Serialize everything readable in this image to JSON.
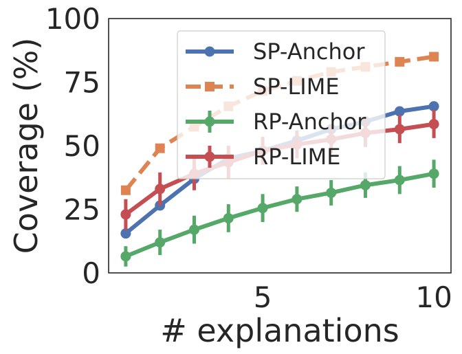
{
  "chart_data": {
    "type": "line",
    "title": "",
    "xlabel": "# explanations",
    "ylabel": "Coverage (%)",
    "xlim": [
      0.5,
      10.5
    ],
    "ylim": [
      0,
      100
    ],
    "xticks": [
      5,
      10
    ],
    "yticks": [
      0,
      25,
      50,
      75,
      100
    ],
    "grid": false,
    "legend_position": "upper-center",
    "x": [
      1,
      2,
      3,
      4,
      5,
      6,
      7,
      8,
      9,
      10
    ],
    "series": [
      {
        "name": "SP-Anchor",
        "color": "#4c72b0",
        "style": "solid",
        "marker": "circle",
        "values": [
          15.5,
          26.5,
          37,
          45,
          48,
          52,
          56.5,
          59.5,
          63.5,
          65.5
        ],
        "errors": [
          0,
          0,
          0,
          0,
          0,
          0,
          0,
          0,
          0,
          0
        ]
      },
      {
        "name": "SP-LIME",
        "color": "#dd8452",
        "style": "dashed",
        "marker": "square",
        "values": [
          32.5,
          49,
          57.5,
          65.5,
          71.5,
          75.5,
          79,
          81,
          83,
          85
        ],
        "errors": [
          0,
          0,
          0,
          0,
          0,
          0,
          0,
          0,
          0,
          0
        ]
      },
      {
        "name": "RP-Anchor",
        "color": "#55a868",
        "style": "solid",
        "marker": "circle",
        "values": [
          6.5,
          12,
          17,
          21.5,
          25.5,
          29,
          31.5,
          34.5,
          36.5,
          39
        ],
        "errors": [
          4,
          5,
          5.5,
          5.5,
          5.5,
          5,
          5,
          5,
          5.5,
          5.5
        ]
      },
      {
        "name": "RP-LIME",
        "color": "#c44e52",
        "style": "solid",
        "marker": "circle",
        "values": [
          23,
          33,
          39,
          43.5,
          48,
          50.5,
          52.5,
          55,
          56.5,
          58.5
        ],
        "errors": [
          6,
          6.5,
          6.5,
          6.5,
          5.5,
          5.5,
          5.5,
          5.5,
          5.5,
          5.5
        ]
      }
    ]
  }
}
